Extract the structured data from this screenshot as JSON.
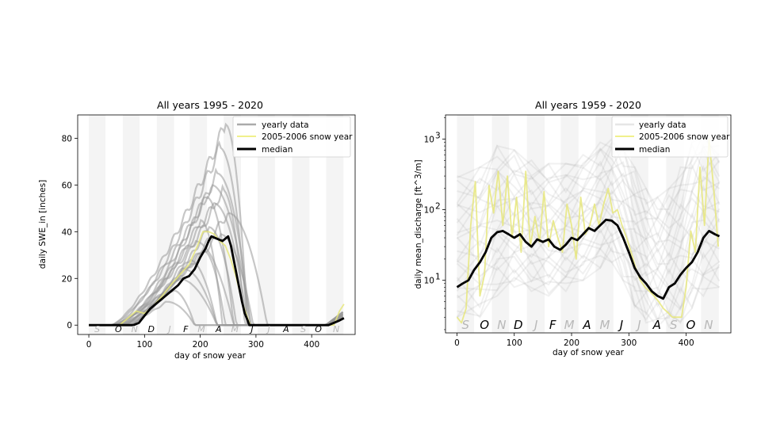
{
  "chart_data": [
    {
      "type": "line",
      "title": "All years 1995 - 2020",
      "xlabel": "day of snow year",
      "ylabel": "daily SWE_in [inches]",
      "xlim": [
        -20,
        478
      ],
      "ylim": [
        -4,
        90
      ],
      "yscale": "linear",
      "xticks": [
        0,
        100,
        200,
        300,
        400
      ],
      "yticks": [
        0,
        20,
        40,
        60,
        80
      ],
      "grid": false,
      "legend_position": "top-right",
      "legend": [
        {
          "label": "yearly data",
          "color": "#aaaaaa"
        },
        {
          "label": "2005-2006 snow year",
          "color": "#f0f08c"
        },
        {
          "label": "median",
          "color": "#000000"
        }
      ],
      "month_labels": [
        {
          "label": "S",
          "x": 15,
          "dark": false
        },
        {
          "label": "O",
          "x": 53,
          "dark": true
        },
        {
          "label": "N",
          "x": 82,
          "dark": false
        },
        {
          "label": "D",
          "x": 112,
          "dark": true
        },
        {
          "label": "J",
          "x": 145,
          "dark": false
        },
        {
          "label": "F",
          "x": 174,
          "dark": true
        },
        {
          "label": "M",
          "x": 202,
          "dark": false
        },
        {
          "label": "A",
          "x": 233,
          "dark": true
        },
        {
          "label": "M",
          "x": 262,
          "dark": false
        },
        {
          "label": "J",
          "x": 293,
          "dark": true
        },
        {
          "label": "J",
          "x": 323,
          "dark": false
        },
        {
          "label": "A",
          "x": 354,
          "dark": true
        },
        {
          "label": "S",
          "x": 385,
          "dark": false
        },
        {
          "label": "O",
          "x": 412,
          "dark": true
        },
        {
          "label": "N",
          "x": 444,
          "dark": false
        }
      ],
      "shaded_bands": [
        [
          0,
          30
        ],
        [
          61,
          91
        ],
        [
          122,
          153
        ],
        [
          181,
          212
        ],
        [
          242,
          273
        ],
        [
          303,
          334
        ],
        [
          365,
          396
        ],
        [
          426,
          457
        ]
      ],
      "series": [
        {
          "name": "yearly data",
          "color": "#aaaaaa",
          "kind": "envelope",
          "x": [
            0,
            60,
            100,
            140,
            170,
            200,
            230,
            250,
            265,
            275,
            290,
            300,
            320,
            420,
            440,
            458
          ],
          "peaks": [
            86,
            76,
            65,
            60,
            58,
            55,
            52,
            48,
            45,
            42,
            39,
            36,
            32,
            28,
            24,
            20,
            15,
            10
          ],
          "peak_days": [
            245,
            235,
            230,
            220,
            240,
            210,
            225,
            250,
            200,
            215,
            235,
            190,
            205,
            180,
            170,
            160,
            150,
            140
          ]
        },
        {
          "name": "2005-2006 snow year",
          "x": [
            0,
            55,
            70,
            85,
            100,
            115,
            130,
            150,
            165,
            180,
            195,
            205,
            215,
            225,
            235,
            245,
            255,
            265,
            275,
            285,
            290,
            440,
            450,
            458
          ],
          "y": [
            0,
            0,
            3,
            6,
            5,
            8,
            12,
            18,
            22,
            26,
            34,
            40,
            40,
            39,
            36,
            34,
            28,
            20,
            10,
            3,
            0,
            0,
            6,
            9
          ]
        },
        {
          "name": "median",
          "x": [
            0,
            80,
            90,
            100,
            110,
            120,
            130,
            140,
            150,
            160,
            170,
            180,
            190,
            200,
            210,
            215,
            220,
            230,
            240,
            250,
            255,
            260,
            265,
            270,
            275,
            280,
            285,
            288,
            430,
            440,
            450,
            458
          ],
          "y": [
            0,
            0,
            1,
            4,
            7,
            9,
            11,
            13,
            15,
            17,
            20,
            21,
            24,
            29,
            33,
            36,
            38,
            37,
            36,
            38,
            34,
            28,
            22,
            16,
            10,
            5,
            2,
            0,
            0,
            1,
            2,
            3
          ]
        }
      ]
    },
    {
      "type": "line",
      "title": "All years 1959 - 2020",
      "xlabel": "day of snow year",
      "ylabel": "daily mean_discharge [ft^3/m]",
      "xlim": [
        -20,
        478
      ],
      "ylim": [
        1.8,
        2200
      ],
      "yscale": "log",
      "xticks": [
        0,
        100,
        200,
        300,
        400
      ],
      "yticks": [
        10,
        100,
        1000
      ],
      "ytick_labels": [
        "10^1",
        "10^2",
        "10^3"
      ],
      "grid": false,
      "legend_position": "top-right",
      "legend": [
        {
          "label": "yearly data",
          "color": "#e6e6e6"
        },
        {
          "label": "2005-2006 snow year",
          "color": "#f0f08c"
        },
        {
          "label": "median",
          "color": "#000000"
        }
      ],
      "month_labels": [
        {
          "label": "S",
          "x": 15,
          "dark": false
        },
        {
          "label": "O",
          "x": 48,
          "dark": true
        },
        {
          "label": "N",
          "x": 78,
          "dark": false
        },
        {
          "label": "D",
          "x": 107,
          "dark": true
        },
        {
          "label": "J",
          "x": 138,
          "dark": false
        },
        {
          "label": "F",
          "x": 167,
          "dark": true
        },
        {
          "label": "M",
          "x": 196,
          "dark": false
        },
        {
          "label": "A",
          "x": 227,
          "dark": true
        },
        {
          "label": "M",
          "x": 258,
          "dark": false
        },
        {
          "label": "J",
          "x": 287,
          "dark": true
        },
        {
          "label": "J",
          "x": 318,
          "dark": false
        },
        {
          "label": "A",
          "x": 349,
          "dark": true
        },
        {
          "label": "S",
          "x": 378,
          "dark": false
        },
        {
          "label": "O",
          "x": 408,
          "dark": true
        },
        {
          "label": "N",
          "x": 439,
          "dark": false
        }
      ],
      "shaded_bands": [
        [
          0,
          30
        ],
        [
          61,
          91
        ],
        [
          122,
          153
        ],
        [
          181,
          212
        ],
        [
          242,
          273
        ],
        [
          303,
          334
        ],
        [
          365,
          396
        ],
        [
          426,
          457
        ]
      ],
      "series": [
        {
          "name": "yearly data",
          "color": "#e6e6e6",
          "kind": "band",
          "x": [
            0,
            40,
            70,
            100,
            130,
            160,
            190,
            220,
            250,
            270,
            290,
            310,
            330,
            350,
            370,
            390,
            410,
            430,
            458
          ],
          "low": [
            3,
            3,
            6,
            8,
            7,
            6,
            7,
            10,
            15,
            18,
            10,
            4,
            2.5,
            2.2,
            2.2,
            2.5,
            4,
            6,
            8
          ],
          "high": [
            300,
            400,
            800,
            700,
            500,
            450,
            450,
            600,
            900,
            1000,
            800,
            400,
            200,
            150,
            200,
            400,
            900,
            1200,
            800
          ]
        },
        {
          "name": "2005-2006 snow year",
          "x": [
            0,
            8,
            16,
            24,
            32,
            40,
            48,
            56,
            64,
            72,
            80,
            88,
            96,
            104,
            112,
            120,
            128,
            136,
            144,
            152,
            160,
            168,
            176,
            184,
            192,
            200,
            208,
            216,
            224,
            232,
            240,
            248,
            256,
            264,
            272,
            280,
            288,
            296,
            304,
            312,
            320,
            328,
            336,
            344,
            352,
            360,
            368,
            376,
            384,
            392,
            400,
            408,
            416,
            424,
            432,
            440,
            448,
            456
          ],
          "y": [
            3,
            2.5,
            4,
            60,
            250,
            6,
            12,
            220,
            90,
            350,
            60,
            300,
            40,
            150,
            25,
            350,
            30,
            80,
            35,
            180,
            30,
            70,
            40,
            25,
            120,
            60,
            20,
            150,
            45,
            60,
            120,
            60,
            120,
            200,
            90,
            100,
            60,
            40,
            25,
            15,
            10,
            8,
            7,
            6,
            5,
            4,
            3.5,
            3,
            3,
            3,
            8,
            50,
            25,
            400,
            60,
            1000,
            200,
            30
          ]
        },
        {
          "name": "median",
          "x": [
            0,
            10,
            20,
            30,
            40,
            50,
            60,
            70,
            80,
            90,
            100,
            110,
            120,
            130,
            140,
            150,
            160,
            170,
            180,
            190,
            200,
            210,
            220,
            230,
            240,
            250,
            260,
            270,
            280,
            290,
            300,
            310,
            320,
            330,
            340,
            350,
            360,
            370,
            380,
            390,
            400,
            410,
            420,
            430,
            440,
            450,
            458
          ],
          "y": [
            8,
            9,
            10,
            14,
            18,
            25,
            40,
            48,
            50,
            45,
            40,
            45,
            35,
            30,
            38,
            35,
            38,
            30,
            27,
            32,
            40,
            37,
            45,
            55,
            50,
            60,
            72,
            70,
            60,
            40,
            25,
            15,
            11,
            9,
            7,
            6,
            5.5,
            8,
            9,
            12,
            15,
            18,
            25,
            40,
            50,
            45,
            42
          ]
        }
      ]
    }
  ]
}
